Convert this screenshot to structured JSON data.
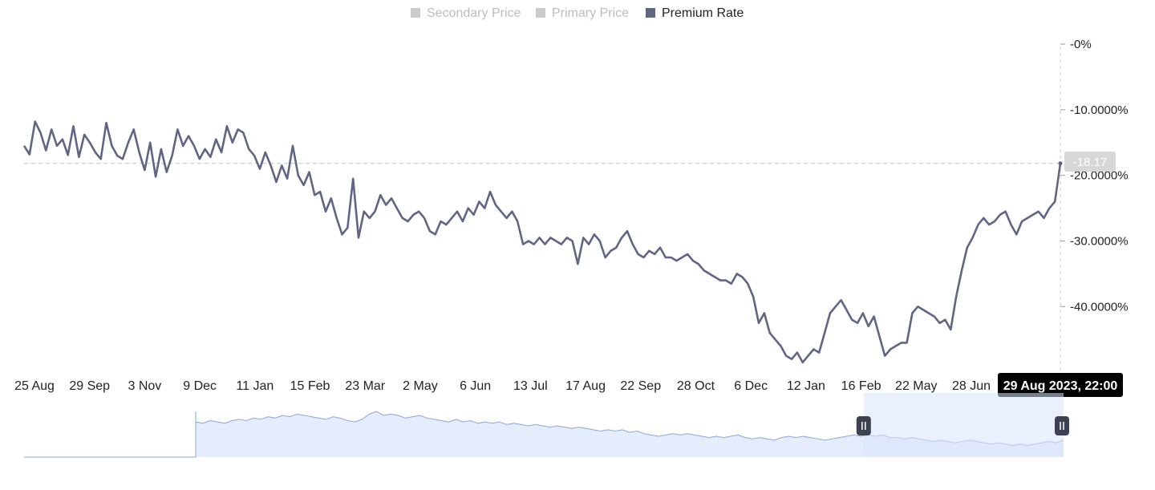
{
  "chart_data": {
    "type": "line",
    "legend": {
      "placement": "top-center",
      "items": [
        {
          "name": "Secondary Price",
          "active": false,
          "color": "#cccccc"
        },
        {
          "name": "Primary Price",
          "active": false,
          "color": "#cccccc"
        },
        {
          "name": "Premium Rate",
          "active": true,
          "color": "#5f6684"
        }
      ]
    },
    "x_tick_labels": [
      "25 Aug",
      "29 Sep",
      "3 Nov",
      "9 Dec",
      "11 Jan",
      "15 Feb",
      "23 Mar",
      "2 May",
      "6 Jun",
      "13 Jul",
      "17 Aug",
      "22 Sep",
      "28 Oct",
      "6 Dec",
      "12 Jan",
      "16 Feb",
      "22 May",
      "28 Jun"
    ],
    "y_tick_labels": [
      "-0%",
      "-10.0000%",
      "-20.0000%",
      "-30.0000%",
      "-40.0000%"
    ],
    "ylim": [
      -49,
      0
    ],
    "y_ticks": [
      0,
      -10,
      -20,
      -30,
      -40
    ],
    "grid": false,
    "crosshair": {
      "value_label": "-18.17",
      "value": -18.17,
      "time_label": "29 Aug 2023, 22:00"
    },
    "series": [
      {
        "name": "Premium Rate",
        "color": "#5f6684",
        "values": [
          -15.5,
          -16.8,
          -11.8,
          -13.5,
          -16.2,
          -13.0,
          -15.5,
          -14.5,
          -16.9,
          -12.5,
          -17.2,
          -13.8,
          -15.0,
          -16.5,
          -17.5,
          -12.0,
          -15.5,
          -17.0,
          -17.5,
          -15.0,
          -13.0,
          -16.5,
          -19.2,
          -15.0,
          -20.2,
          -16.0,
          -19.5,
          -17.0,
          -13.0,
          -15.5,
          -14.0,
          -15.5,
          -17.5,
          -16.0,
          -17.2,
          -14.5,
          -16.5,
          -12.5,
          -15.0,
          -13.0,
          -13.5,
          -16.0,
          -17.0,
          -19.0,
          -16.5,
          -18.5,
          -21.0,
          -18.5,
          -20.5,
          -15.5,
          -20.0,
          -21.5,
          -19.5,
          -23.0,
          -22.5,
          -25.5,
          -23.5,
          -26.5,
          -29.0,
          -28.0,
          -20.5,
          -29.5,
          -25.5,
          -26.5,
          -25.5,
          -23.0,
          -24.5,
          -23.5,
          -25.0,
          -26.5,
          -27.0,
          -26.0,
          -25.5,
          -26.5,
          -28.5,
          -29.0,
          -27.0,
          -27.5,
          -26.5,
          -25.5,
          -27.0,
          -25.0,
          -26.0,
          -24.0,
          -25.0,
          -22.5,
          -24.5,
          -25.5,
          -26.5,
          -25.5,
          -27.0,
          -30.5,
          -30.0,
          -30.5,
          -29.5,
          -30.5,
          -29.5,
          -30.0,
          -30.5,
          -29.5,
          -30.0,
          -33.5,
          -29.5,
          -30.5,
          -29.0,
          -30.0,
          -32.5,
          -31.5,
          -31.0,
          -29.5,
          -28.5,
          -30.5,
          -32.0,
          -32.5,
          -31.5,
          -32.0,
          -31.0,
          -32.5,
          -32.5,
          -33.0,
          -32.5,
          -32.0,
          -33.0,
          -33.5,
          -34.5,
          -35.0,
          -35.5,
          -36.0,
          -36.0,
          -36.5,
          -35.0,
          -35.5,
          -36.5,
          -38.5,
          -42.5,
          -41.0,
          -44.0,
          -45.0,
          -46.0,
          -47.5,
          -48.0,
          -47.0,
          -48.5,
          -47.5,
          -46.5,
          -47.0,
          -44.0,
          -41.0,
          -40.0,
          -39.0,
          -40.5,
          -42.0,
          -42.5,
          -41.0,
          -43.0,
          -41.5,
          -44.5,
          -47.5,
          -46.5,
          -46.0,
          -45.5,
          -45.5,
          -41.0,
          -40.0,
          -40.5,
          -41.0,
          -41.5,
          -42.5,
          -42.0,
          -43.5,
          -38.5,
          -34.5,
          -31.0,
          -29.5,
          -27.5,
          -26.5,
          -27.5,
          -27.0,
          -26.0,
          -25.5,
          -27.5,
          -29.0,
          -27.0,
          -26.5,
          -26.0,
          -25.5,
          -26.5,
          -25.0,
          -24.0,
          -18.17
        ]
      }
    ],
    "navigator": {
      "series": [
        {
          "name": "Premium Rate",
          "values": [
            -18,
            -19,
            -17,
            -18,
            -19,
            -17,
            -16,
            -17,
            -15,
            -16,
            -14,
            -15,
            -13,
            -14,
            -12,
            -13,
            -14,
            -15,
            -16,
            -14,
            -15,
            -17,
            -18,
            -16,
            -12,
            -10,
            -13,
            -12,
            -13,
            -15,
            -14,
            -13,
            -15,
            -16,
            -17,
            -18,
            -16,
            -18,
            -17,
            -19,
            -18,
            -19,
            -18,
            -20,
            -19,
            -20,
            -21,
            -20,
            -21,
            -22,
            -21,
            -22,
            -23,
            -22,
            -23,
            -24,
            -25,
            -24,
            -25,
            -24,
            -26,
            -25,
            -27,
            -28,
            -29,
            -28,
            -27,
            -28,
            -27,
            -28,
            -29,
            -30,
            -29,
            -30,
            -29,
            -28,
            -30,
            -31,
            -30,
            -31,
            -32,
            -30,
            -29,
            -30,
            -29,
            -30,
            -31,
            -32,
            -31,
            -30,
            -29,
            -28,
            -29,
            -28,
            -29,
            -28,
            -30,
            -30,
            -31,
            -30,
            -31,
            -32,
            -33,
            -32,
            -33,
            -34,
            -33,
            -32,
            -33,
            -34,
            -35,
            -34,
            -35,
            -36,
            -35,
            -36,
            -35,
            -34,
            -33,
            -34,
            -32
          ]
        }
      ],
      "selected_range_fraction": [
        0.8,
        1.0
      ]
    }
  }
}
